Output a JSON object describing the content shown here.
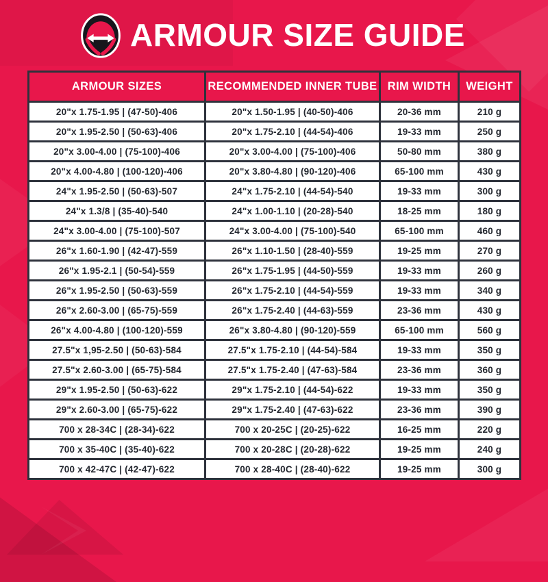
{
  "page": {
    "title": "ARMOUR SIZE GUIDE"
  },
  "logo": {
    "name": "tyre-armour-width-arrow-logo"
  },
  "colors": {
    "background": "#E8174B",
    "table_border": "#2E323C",
    "cell_background": "#FFFFFF",
    "cell_text": "#23272F",
    "header_text": "#FFFFFF",
    "logo_black": "#17161C"
  },
  "table": {
    "columns": [
      "ARMOUR SIZES",
      "RECOMMENDED INNER TUBE",
      "RIM WIDTH",
      "WEIGHT"
    ],
    "rows": [
      [
        "20\"x 1.75-1.95 | (47-50)-406",
        "20\"x 1.50-1.95 | (40-50)-406",
        "20-36 mm",
        "210 g"
      ],
      [
        "20\"x 1.95-2.50 | (50-63)-406",
        "20\"x 1.75-2.10 | (44-54)-406",
        "19-33 mm",
        "250 g"
      ],
      [
        "20\"x 3.00-4.00 | (75-100)-406",
        "20\"x 3.00-4.00 | (75-100)-406",
        "50-80 mm",
        "380 g"
      ],
      [
        "20\"x 4.00-4.80 | (100-120)-406",
        "20\"x 3.80-4.80 | (90-120)-406",
        "65-100 mm",
        "430 g"
      ],
      [
        "24\"x 1.95-2.50 | (50-63)-507",
        "24\"x 1.75-2.10 | (44-54)-540",
        "19-33 mm",
        "300 g"
      ],
      [
        "24\"x 1.3/8 | (35-40)-540",
        "24\"x 1.00-1.10 | (20-28)-540",
        "18-25 mm",
        "180 g"
      ],
      [
        "24\"x 3.00-4.00 | (75-100)-507",
        "24\"x 3.00-4.00 | (75-100)-540",
        "65-100 mm",
        "460 g"
      ],
      [
        "26\"x 1.60-1.90 | (42-47)-559",
        "26\"x 1.10-1.50 | (28-40)-559",
        "19-25 mm",
        "270 g"
      ],
      [
        "26\"x 1.95-2.1 | (50-54)-559",
        "26\"x 1.75-1.95 | (44-50)-559",
        "19-33 mm",
        "260 g"
      ],
      [
        "26\"x 1.95-2.50 | (50-63)-559",
        "26\"x 1.75-2.10 | (44-54)-559",
        "19-33 mm",
        "340 g"
      ],
      [
        "26\"x 2.60-3.00 | (65-75)-559",
        "26\"x 1.75-2.40 | (44-63)-559",
        "23-36 mm",
        "430 g"
      ],
      [
        "26\"x 4.00-4.80 | (100-120)-559",
        "26\"x 3.80-4.80 | (90-120)-559",
        "65-100 mm",
        "560 g"
      ],
      [
        "27.5\"x 1,95-2.50 | (50-63)-584",
        "27.5\"x 1.75-2.10 | (44-54)-584",
        "19-33 mm",
        "350 g"
      ],
      [
        "27.5\"x 2.60-3.00 | (65-75)-584",
        "27.5\"x 1.75-2.40 | (47-63)-584",
        "23-36 mm",
        "360 g"
      ],
      [
        "29\"x 1.95-2.50 | (50-63)-622",
        "29\"x 1.75-2.10 | (44-54)-622",
        "19-33 mm",
        "350 g"
      ],
      [
        "29\"x 2.60-3.00 | (65-75)-622",
        "29\"x 1.75-2.40 | (47-63)-622",
        "23-36 mm",
        "390 g"
      ],
      [
        "700 x 28-34C | (28-34)-622",
        "700 x 20-25C | (20-25)-622",
        "16-25 mm",
        "220 g"
      ],
      [
        "700 x 35-40C | (35-40)-622",
        "700 x 20-28C | (20-28)-622",
        "19-25 mm",
        "240 g"
      ],
      [
        "700 x 42-47C | (42-47)-622",
        "700 x 28-40C | (28-40)-622",
        "19-25 mm",
        "300 g"
      ]
    ]
  }
}
